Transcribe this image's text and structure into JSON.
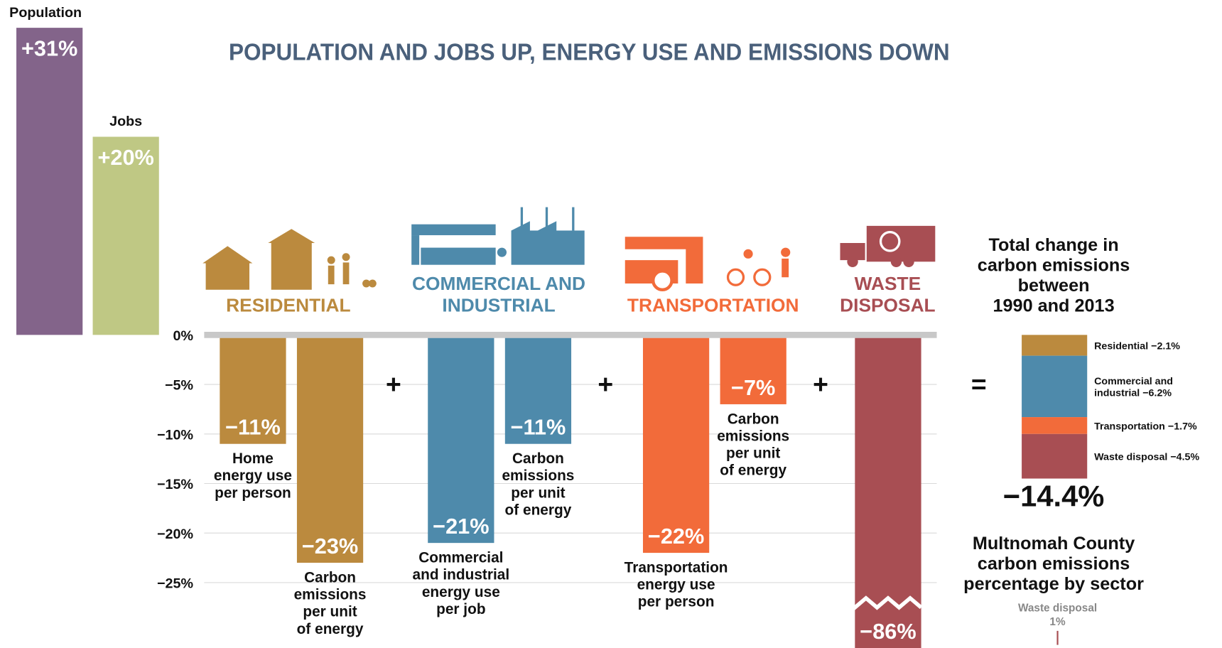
{
  "chart_data": {
    "type": "bar",
    "title": "POPULATION AND JOBS UP, ENERGY USE AND EMISSIONS DOWN",
    "ylim": [
      -25,
      0
    ],
    "yticks": [
      {
        "value": 0,
        "label": "0%"
      },
      {
        "value": -5,
        "label": "−5%"
      },
      {
        "value": -10,
        "label": "−10%"
      },
      {
        "value": -15,
        "label": "−15%"
      },
      {
        "value": -20,
        "label": "−20%"
      },
      {
        "value": -25,
        "label": "−25%"
      }
    ],
    "grid": true,
    "growth": [
      {
        "name": "Population",
        "value": 31,
        "value_label": "+31%",
        "color": "#83648a"
      },
      {
        "name": "Jobs",
        "value": 20,
        "value_label": "+20%",
        "color": "#bfc884"
      }
    ],
    "sectors": [
      {
        "label_lines": [
          "RESIDENTIAL"
        ],
        "color": "#bb8a3e",
        "bars": [
          {
            "desc_lines": [
              "Home",
              "energy use",
              "per person"
            ],
            "value": -11,
            "value_label": "−11%"
          },
          {
            "desc_lines": [
              "Carbon",
              "emissions",
              "per unit",
              "of energy"
            ],
            "value": -23,
            "value_label": "−23%"
          }
        ]
      },
      {
        "label_lines": [
          "COMMERCIAL AND",
          "INDUSTRIAL"
        ],
        "color": "#4e8aab",
        "bars": [
          {
            "desc_lines": [
              "Commercial",
              "and industrial",
              "energy use",
              "per job"
            ],
            "value": -21,
            "value_label": "−21%"
          },
          {
            "desc_lines": [
              "Carbon",
              "emissions",
              "per unit",
              "of energy"
            ],
            "value": -11,
            "value_label": "−11%"
          }
        ]
      },
      {
        "label_lines": [
          "TRANSPORTATION"
        ],
        "color": "#f26b3a",
        "bars": [
          {
            "desc_lines": [
              "Transportation",
              "energy use",
              "per person"
            ],
            "value": -22,
            "value_label": "−22%"
          },
          {
            "desc_lines": [
              "Carbon",
              "emissions",
              "per unit",
              "of energy"
            ],
            "value": -7,
            "value_label": "−7%"
          }
        ]
      },
      {
        "label_lines": [
          "WASTE",
          "DISPOSAL"
        ],
        "color": "#a84e53",
        "bars": [
          {
            "desc_lines": [],
            "value": -86,
            "value_label": "−86%"
          }
        ]
      }
    ],
    "operators": [
      "+",
      "+",
      "+",
      "="
    ],
    "total": {
      "title_lines": [
        "Total change in",
        "carbon emissions",
        "between",
        "1990 and 2013"
      ],
      "segments": [
        {
          "name_lines": [
            "Residential"
          ],
          "value": -2.1,
          "value_label": "−2.1%",
          "color": "#bb8a3e"
        },
        {
          "name_lines": [
            "Commercial and",
            "industrial"
          ],
          "value": -6.2,
          "value_label": "−6.2%",
          "color": "#4e8aab"
        },
        {
          "name_lines": [
            "Transportation"
          ],
          "value": -1.7,
          "value_label": "−1.7%",
          "color": "#f26b3a"
        },
        {
          "name_lines": [
            "Waste disposal"
          ],
          "value": -4.5,
          "value_label": "−4.5%",
          "color": "#a84e53"
        }
      ],
      "value": -14.4,
      "value_label": "−14.4%"
    },
    "footnote": {
      "title_lines": [
        "Multnomah County",
        "carbon emissions",
        "percentage by sector"
      ],
      "label": "Waste disposal",
      "value": 1,
      "value_label": "1%"
    }
  }
}
